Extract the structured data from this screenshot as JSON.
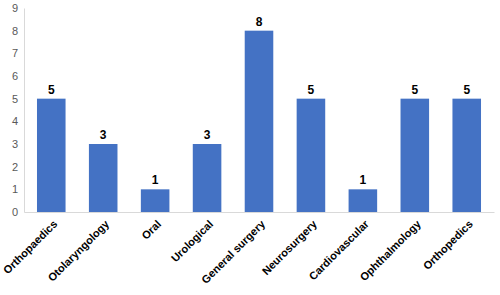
{
  "chart_data": {
    "type": "bar",
    "categories": [
      "Orthopaedics",
      "Otolaryngology",
      "Oral",
      "Urological",
      "General surgery",
      "Neurosurgery",
      "Cardiovascular",
      "Ophthalmology",
      "Orthopedics"
    ],
    "values": [
      5,
      3,
      1,
      3,
      8,
      5,
      1,
      5,
      5
    ],
    "color": "#4472c4",
    "ylim": [
      0,
      9
    ],
    "yticks": [
      0,
      1,
      2,
      3,
      4,
      5,
      6,
      7,
      8,
      9
    ],
    "grid": false,
    "data_labels": true
  }
}
